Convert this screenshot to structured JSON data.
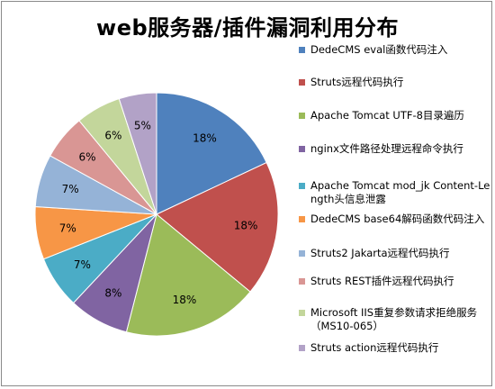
{
  "chart_data": {
    "type": "pie",
    "title": "web服务器/插件漏洞利用分布",
    "legend_position": "right",
    "slices": [
      {
        "name": "DedeCMS eval函数代码注入",
        "value": 18,
        "label": "18%",
        "color": "#4f81bd"
      },
      {
        "name": "Struts远程代码执行",
        "value": 18,
        "label": "18%",
        "color": "#c0504d"
      },
      {
        "name": "Apache Tomcat UTF-8目录遍历",
        "value": 18,
        "label": "18%",
        "color": "#9bbb59"
      },
      {
        "name": "nginx文件路径处理远程命令执行",
        "value": 8,
        "label": "8%",
        "color": "#8064a2"
      },
      {
        "name": "Apache Tomcat mod_jk Content-Length头信息泄露",
        "value": 7,
        "label": "7%",
        "color": "#4bacc6"
      },
      {
        "name": "DedeCMS base64解码函数代码注入",
        "value": 7,
        "label": "7%",
        "color": "#f79646"
      },
      {
        "name": "Struts2 Jakarta远程代码执行",
        "value": 7,
        "label": "7%",
        "color": "#95b3d7"
      },
      {
        "name": "Struts REST插件远程代码执行",
        "value": 6,
        "label": "6%",
        "color": "#d99694"
      },
      {
        "name": "Microsoft IIS重复参数请求拒绝服务（MS10-065）",
        "value": 6,
        "label": "6%",
        "color": "#c3d69b"
      },
      {
        "name": "Struts action远程代码执行",
        "value": 5,
        "label": "5%",
        "color": "#b2a2c7"
      }
    ]
  }
}
